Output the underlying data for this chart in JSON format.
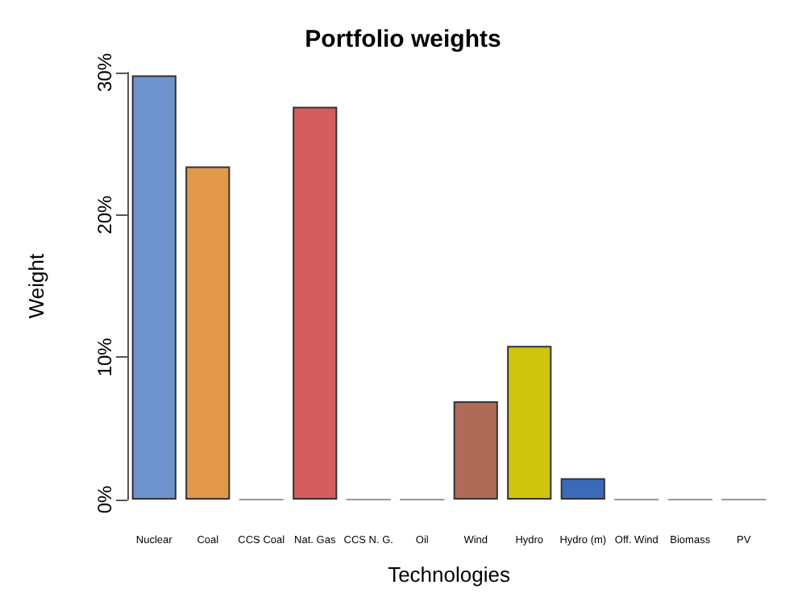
{
  "chart_data": {
    "type": "bar",
    "title": "Portfolio weights",
    "xlabel": "Technologies",
    "ylabel": "Weight",
    "categories": [
      "Nuclear",
      "Coal",
      "CCS Coal",
      "Nat. Gas",
      "CCS N. G.",
      "Oil",
      "Wind",
      "Hydro",
      "Hydro (m)",
      "Off. Wind",
      "Biomass",
      "PV"
    ],
    "values": [
      29.8,
      23.4,
      0,
      27.6,
      0,
      0,
      6.9,
      10.8,
      1.5,
      0,
      0,
      0
    ],
    "colors": [
      "#6f93cc",
      "#e3994b",
      "#999999",
      "#d45c5f",
      "#999999",
      "#999999",
      "#b06a58",
      "#cfc40e",
      "#3a6abb",
      "#999999",
      "#999999",
      "#999999"
    ],
    "ylim": [
      0,
      30
    ],
    "yticks": [
      {
        "value": 0,
        "label": "0%"
      },
      {
        "value": 10,
        "label": "10%"
      },
      {
        "value": 20,
        "label": "20%"
      },
      {
        "value": 30,
        "label": "30%"
      }
    ],
    "data_labels": false
  }
}
